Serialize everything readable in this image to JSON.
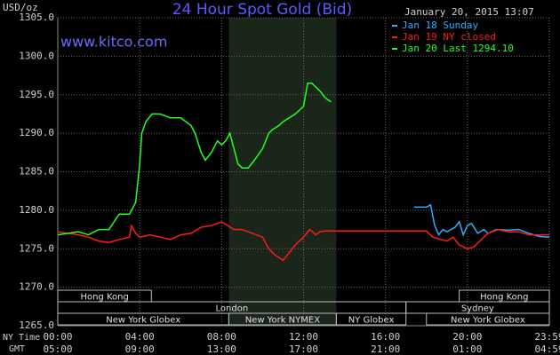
{
  "chart_data": {
    "type": "line",
    "title": "24 Hour Spot Gold (Bid)",
    "watermark": "www.kitco.com",
    "date": "January 20, 2015 13:07",
    "ylabel": "USD/oz",
    "xlabel": "NY Time",
    "x2label": "GMT",
    "xlim": [
      0,
      24
    ],
    "xticks": [
      {
        "value": 0,
        "label": "00:00"
      },
      {
        "value": 4,
        "label": "04:00"
      },
      {
        "value": 8,
        "label": "08:00"
      },
      {
        "value": 12,
        "label": "12:00"
      },
      {
        "value": 16,
        "label": "16:00"
      },
      {
        "value": 20,
        "label": "20:00"
      },
      {
        "value": 24,
        "label": "23:59"
      }
    ],
    "x2ticks": [
      {
        "value": 0,
        "label": "05:00"
      },
      {
        "value": 4,
        "label": "09:00"
      },
      {
        "value": 8,
        "label": "13:00"
      },
      {
        "value": 12,
        "label": "17:00"
      },
      {
        "value": 16,
        "label": "21:00"
      },
      {
        "value": 20,
        "label": "01:00"
      },
      {
        "value": 24,
        "label": "04:59"
      }
    ],
    "ylim": [
      1265,
      1305
    ],
    "yticks": [
      {
        "value": 1265,
        "label": "1265.0"
      },
      {
        "value": 1270,
        "label": "1270.0"
      },
      {
        "value": 1275,
        "label": "1275.0"
      },
      {
        "value": 1280,
        "label": "1280.0"
      },
      {
        "value": 1285,
        "label": "1285.0"
      },
      {
        "value": 1290,
        "label": "1290.0"
      },
      {
        "value": 1295,
        "label": "1295.0"
      },
      {
        "value": 1300,
        "label": "1300.0"
      },
      {
        "value": 1305,
        "label": "1305.0"
      }
    ],
    "grid": true,
    "legend": "top-right",
    "shade": [
      8.35,
      13.6
    ],
    "sessions": [
      [
        {
          "name": "Hong Kong",
          "start": 0,
          "end": 4.57
        },
        {
          "name": "Hong Kong",
          "start": 19.6,
          "end": 24
        }
      ],
      [
        {
          "name": "London",
          "start": 0,
          "end": 17
        },
        {
          "name": "Sydney",
          "start": 17,
          "end": 24
        }
      ],
      [
        {
          "name": "New York Globex",
          "start": 0,
          "end": 8.35
        },
        {
          "name": "New York NYMEX",
          "start": 8.35,
          "end": 13.6
        },
        {
          "name": "NY Globex",
          "start": 13.6,
          "end": 17
        },
        {
          "name": "New York Globex",
          "start": 18,
          "end": 24
        }
      ]
    ],
    "series": [
      {
        "name": "Jan 18 Sunday",
        "color": "#33aaff",
        "x": [
          17.4,
          18,
          18.2,
          18.4,
          18.6,
          18.8,
          19,
          19.4,
          19.6,
          19.8,
          20,
          20.2,
          20.5,
          20.8,
          21,
          21.4,
          22,
          22.5,
          23,
          23.5,
          24
        ],
        "values": [
          1280.4,
          1280.4,
          1280.7,
          1278,
          1276.8,
          1277.5,
          1277.2,
          1277.8,
          1278.5,
          1276.8,
          1278,
          1278.3,
          1277,
          1277.5,
          1277,
          1277.5,
          1277.4,
          1277.5,
          1277,
          1276.6,
          1276.5
        ]
      },
      {
        "name": "Jan 19 NY closed",
        "color": "#ff1a1a",
        "x": [
          0,
          0.5,
          1,
          1.5,
          2,
          2.5,
          3,
          3.5,
          3.6,
          3.8,
          4,
          4.5,
          5,
          5.5,
          6,
          6.5,
          7,
          7.5,
          8,
          8.3,
          8.6,
          9,
          9.5,
          10,
          10.3,
          10.6,
          11,
          11.3,
          11.6,
          12,
          12.3,
          12.6,
          12.8,
          13,
          18,
          18.3,
          18.7,
          19,
          19.3,
          19.6,
          20,
          20.3,
          20.6,
          21,
          21.5,
          22,
          22.5,
          23,
          23.5,
          24
        ],
        "values": [
          1277.2,
          1277,
          1276.8,
          1276.5,
          1276,
          1275.8,
          1276.2,
          1276.5,
          1278,
          1277,
          1276.5,
          1276.8,
          1276.5,
          1276.2,
          1276.8,
          1277,
          1277.8,
          1278,
          1278.5,
          1278,
          1277.5,
          1277.5,
          1277,
          1276.5,
          1275,
          1274.2,
          1273.5,
          1274.5,
          1275.5,
          1276.5,
          1277.5,
          1276.8,
          1277.2,
          1277.3,
          1277.3,
          1276.5,
          1276.2,
          1276,
          1276.5,
          1275.5,
          1275,
          1275.2,
          1276,
          1277,
          1277.5,
          1277.2,
          1277.2,
          1276.8,
          1276.8,
          1276.8
        ]
      },
      {
        "name": "Jan 20 Last 1294.10",
        "color": "#22ff22",
        "x": [
          0,
          0.5,
          1,
          1.5,
          2,
          2.5,
          3,
          3.5,
          3.8,
          4,
          4.1,
          4.3,
          4.6,
          5,
          5.5,
          6,
          6.5,
          6.7,
          7,
          7.2,
          7.5,
          7.8,
          8,
          8.2,
          8.4,
          8.6,
          8.8,
          9,
          9.3,
          9.6,
          10,
          10.3,
          10.5,
          10.8,
          11,
          11.3,
          11.6,
          12,
          12.2,
          12.4,
          12.6,
          12.8,
          13,
          13.2,
          13.35
        ],
        "values": [
          1276.8,
          1277,
          1277.2,
          1276.8,
          1277.5,
          1277.5,
          1279.5,
          1279.5,
          1281,
          1286,
          1290,
          1291.5,
          1292.5,
          1292.5,
          1292,
          1292,
          1291,
          1290,
          1287.5,
          1286.5,
          1287.5,
          1289,
          1288.5,
          1289,
          1290,
          1288,
          1286,
          1285.5,
          1285.5,
          1286.5,
          1288,
          1290,
          1290.5,
          1291,
          1291.5,
          1292,
          1292.5,
          1293.5,
          1296.5,
          1296.5,
          1296,
          1295.5,
          1294.8,
          1294.3,
          1294.1
        ]
      }
    ]
  }
}
